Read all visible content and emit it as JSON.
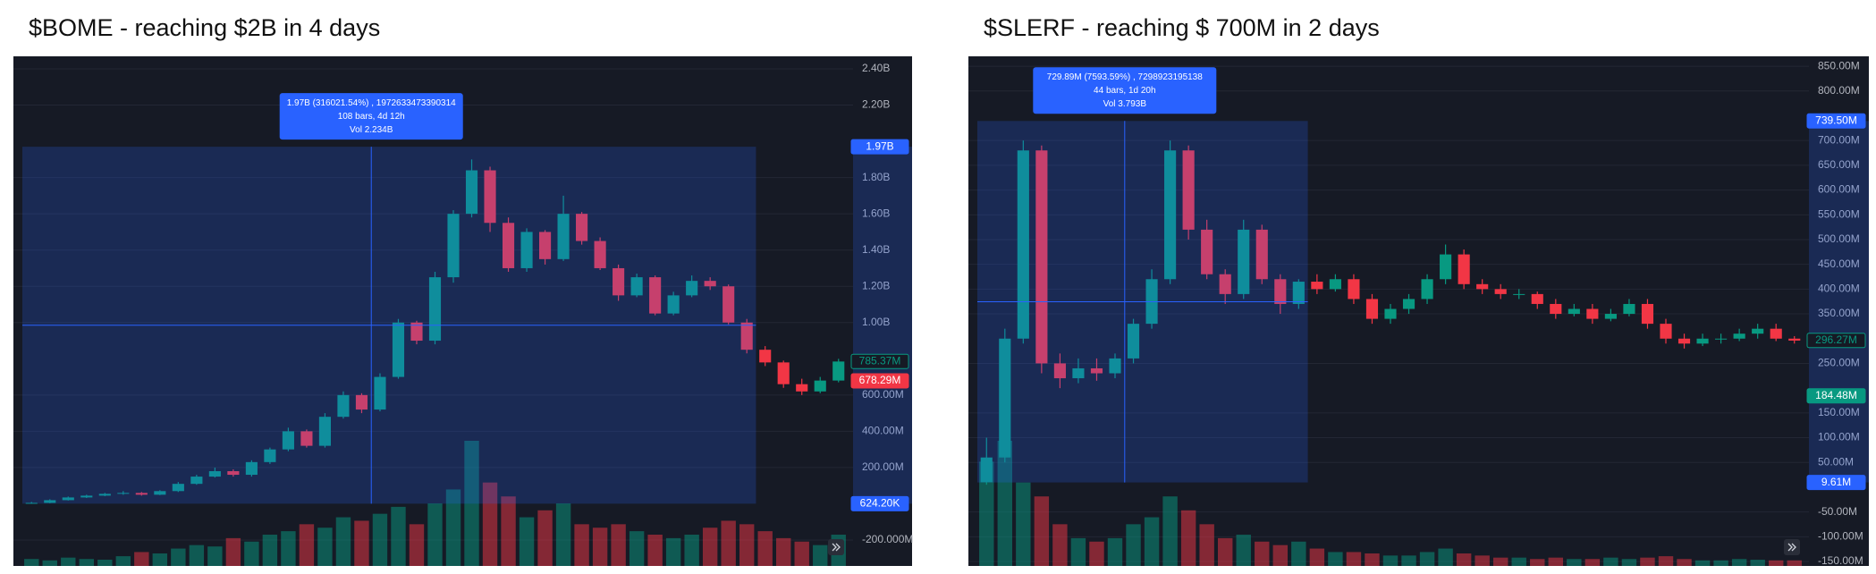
{
  "chart_data": [
    {
      "type": "candlestick",
      "title": "$BOME - reaching $2B in 4 days",
      "ylim": [
        -343,
        2469
      ],
      "yticks": [
        {
          "value": 2400,
          "label": "2.40B"
        },
        {
          "value": 2200,
          "label": "2.20B"
        },
        {
          "value": 1800,
          "label": "1.80B"
        },
        {
          "value": 1600,
          "label": "1.60B"
        },
        {
          "value": 1400,
          "label": "1.40B"
        },
        {
          "value": 1200,
          "label": "1.20B"
        },
        {
          "value": 1000,
          "label": "1.00B"
        },
        {
          "value": 600,
          "label": "600.00M"
        },
        {
          "value": 400,
          "label": "400.00M"
        },
        {
          "value": 200,
          "label": "200.00M"
        },
        {
          "value": -200,
          "label": "-200.000M"
        }
      ],
      "ohlc": {
        "open": [
          0,
          5,
          20,
          35,
          45,
          55,
          60,
          50,
          70,
          110,
          150,
          180,
          160,
          230,
          300,
          400,
          320,
          480,
          600,
          520,
          700,
          1000,
          900,
          1250,
          1600,
          1840,
          1550,
          1300,
          1500,
          1350,
          1600,
          1450,
          1300,
          1150,
          1250,
          1050,
          1150,
          1230,
          1200,
          1000,
          850,
          780,
          660,
          620,
          680
        ],
        "high": [
          10,
          25,
          40,
          50,
          60,
          70,
          65,
          75,
          120,
          160,
          200,
          190,
          240,
          310,
          420,
          410,
          500,
          620,
          610,
          720,
          1020,
          1010,
          1280,
          1620,
          1900,
          1860,
          1580,
          1520,
          1510,
          1700,
          1610,
          1470,
          1320,
          1270,
          1260,
          1170,
          1260,
          1250,
          1210,
          1020,
          870,
          790,
          690,
          700,
          800
        ],
        "low": [
          0,
          3,
          18,
          32,
          42,
          50,
          45,
          48,
          65,
          105,
          145,
          150,
          150,
          220,
          290,
          310,
          310,
          470,
          500,
          510,
          690,
          880,
          880,
          1220,
          1580,
          1500,
          1280,
          1280,
          1320,
          1340,
          1430,
          1290,
          1120,
          1140,
          1040,
          1040,
          1140,
          1180,
          990,
          830,
          760,
          640,
          600,
          610,
          670
        ],
        "close": [
          5,
          20,
          35,
          45,
          55,
          60,
          50,
          70,
          110,
          150,
          180,
          160,
          230,
          300,
          400,
          320,
          480,
          600,
          520,
          700,
          1000,
          900,
          1250,
          1600,
          1840,
          1550,
          1300,
          1500,
          1350,
          1600,
          1450,
          1300,
          1150,
          1250,
          1050,
          1150,
          1230,
          1200,
          1000,
          850,
          780,
          660,
          620,
          680,
          785
        ]
      },
      "volume": [
        10,
        8,
        12,
        10,
        9,
        14,
        20,
        18,
        25,
        30,
        28,
        40,
        35,
        45,
        50,
        60,
        55,
        70,
        65,
        75,
        85,
        60,
        90,
        110,
        180,
        120,
        100,
        70,
        80,
        90,
        60,
        55,
        60,
        50,
        45,
        40,
        45,
        55,
        65,
        60,
        50,
        40,
        35,
        30,
        45
      ],
      "up_color": "#089981",
      "down_color": "#f23645",
      "measure": {
        "high": {
          "value": 1970,
          "label": "1.97B"
        },
        "low": {
          "value": 0.6242,
          "label": "624.20K"
        },
        "color": "#2962ff",
        "tooltip": [
          "1.97B (316021.54%) , 1972633473390314",
          "108 bars, 4d 12h",
          "Vol 2.234B"
        ]
      },
      "price_labels": [
        {
          "value": 785.37,
          "label": "785.37M",
          "color": "#089981",
          "style": "outline"
        },
        {
          "value": 678.29,
          "label": "678.29M",
          "color": "#f23645",
          "style": "fill"
        }
      ]
    },
    {
      "type": "candlestick",
      "title": "$SLERF - reaching $ 700M in 2 days",
      "ylim": [
        -159,
        870
      ],
      "yticks": [
        {
          "value": 850,
          "label": "850.00M"
        },
        {
          "value": 800,
          "label": "800.00M"
        },
        {
          "value": 700,
          "label": "700.00M"
        },
        {
          "value": 650,
          "label": "650.00M"
        },
        {
          "value": 600,
          "label": "600.00M"
        },
        {
          "value": 550,
          "label": "550.00M"
        },
        {
          "value": 500,
          "label": "500.00M"
        },
        {
          "value": 450,
          "label": "450.00M"
        },
        {
          "value": 400,
          "label": "400.00M"
        },
        {
          "value": 350,
          "label": "350.00M"
        },
        {
          "value": 250,
          "label": "250.00M"
        },
        {
          "value": 150,
          "label": "150.00M"
        },
        {
          "value": 100,
          "label": "100.00M"
        },
        {
          "value": 50,
          "label": "50.00M"
        },
        {
          "value": -50,
          "label": "-50.00M"
        },
        {
          "value": -100,
          "label": "-100.00M"
        },
        {
          "value": -150,
          "label": "-150.00M"
        }
      ],
      "ohlc": {
        "open": [
          10,
          60,
          300,
          680,
          250,
          220,
          240,
          230,
          260,
          330,
          420,
          680,
          520,
          430,
          390,
          520,
          420,
          370,
          415,
          400,
          420,
          380,
          340,
          360,
          380,
          420,
          470,
          410,
          400,
          390,
          390,
          370,
          350,
          360,
          340,
          350,
          370,
          330,
          300,
          290,
          300,
          300,
          310,
          320,
          300
        ],
        "high": [
          100,
          320,
          700,
          690,
          270,
          260,
          260,
          270,
          340,
          440,
          700,
          690,
          540,
          440,
          540,
          530,
          430,
          420,
          430,
          430,
          430,
          390,
          370,
          390,
          430,
          490,
          480,
          420,
          410,
          400,
          395,
          380,
          370,
          370,
          360,
          380,
          380,
          340,
          310,
          310,
          310,
          320,
          330,
          330,
          305
        ],
        "low": [
          5,
          50,
          290,
          230,
          200,
          210,
          215,
          220,
          250,
          320,
          410,
          500,
          420,
          370,
          380,
          410,
          350,
          360,
          390,
          395,
          370,
          330,
          330,
          350,
          370,
          410,
          400,
          390,
          380,
          380,
          360,
          340,
          345,
          330,
          335,
          345,
          320,
          290,
          280,
          285,
          290,
          295,
          300,
          295,
          290
        ],
        "close": [
          60,
          300,
          680,
          250,
          220,
          240,
          230,
          260,
          330,
          420,
          680,
          520,
          430,
          390,
          520,
          420,
          370,
          415,
          400,
          420,
          380,
          340,
          360,
          380,
          420,
          470,
          410,
          400,
          390,
          390,
          370,
          350,
          360,
          340,
          350,
          370,
          330,
          300,
          290,
          300,
          300,
          310,
          320,
          300,
          296
        ]
      },
      "volume": [
        150,
        180,
        120,
        100,
        60,
        40,
        35,
        40,
        60,
        70,
        100,
        80,
        60,
        40,
        45,
        35,
        30,
        35,
        25,
        20,
        20,
        18,
        15,
        15,
        20,
        25,
        18,
        15,
        12,
        12,
        10,
        12,
        10,
        10,
        12,
        10,
        12,
        14,
        10,
        8,
        8,
        10,
        9,
        8,
        8
      ],
      "up_color": "#089981",
      "down_color": "#f23645",
      "measure": {
        "high": {
          "value": 739.5,
          "label": "739.50M"
        },
        "low": {
          "value": 9.61,
          "label": "9.61M"
        },
        "color": "#2962ff",
        "tooltip": [
          "729.89M (7593.59%) , 7298923195138",
          "44 bars, 1d 20h",
          "Vol 3.793B"
        ]
      },
      "price_labels": [
        {
          "value": 296.27,
          "label": "296.27M",
          "color": "#089981",
          "style": "outline"
        },
        {
          "value": 184.48,
          "label": "184.48M",
          "color": "#089981",
          "style": "fill"
        }
      ]
    }
  ]
}
